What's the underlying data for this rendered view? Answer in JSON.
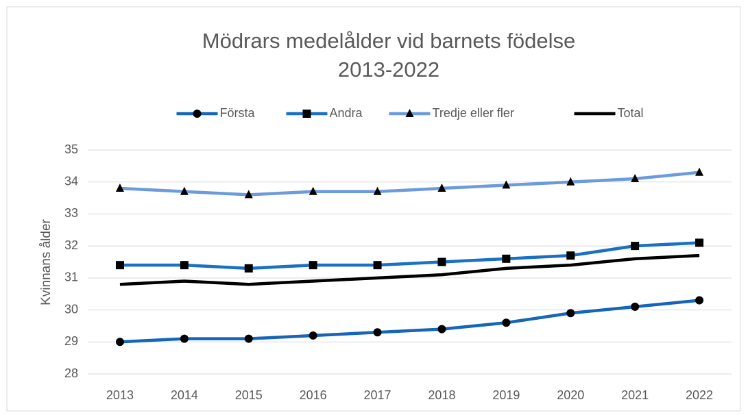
{
  "chart_data": {
    "type": "line",
    "title": "Mödrars medelålder vid barnets födelse",
    "subtitle": "2013-2022",
    "y_label": "Kvinnans ålder",
    "categories": [
      "2013",
      "2014",
      "2015",
      "2016",
      "2017",
      "2018",
      "2019",
      "2020",
      "2021",
      "2022"
    ],
    "series": [
      {
        "name": "Första",
        "color": "#1565b8",
        "marker": "circle",
        "values": [
          29.0,
          29.1,
          29.1,
          29.2,
          29.3,
          29.4,
          29.6,
          29.9,
          30.1,
          30.3
        ]
      },
      {
        "name": "Andra",
        "color": "#1a70c4",
        "marker": "square",
        "values": [
          31.4,
          31.4,
          31.3,
          31.4,
          31.4,
          31.5,
          31.6,
          31.7,
          32.0,
          32.1
        ]
      },
      {
        "name": "Tredje eller fler",
        "color": "#6b9bdc",
        "marker": "triangle",
        "values": [
          33.8,
          33.7,
          33.6,
          33.7,
          33.7,
          33.8,
          33.9,
          34.0,
          34.1,
          34.3
        ]
      },
      {
        "name": "Total",
        "color": "#000000",
        "marker": "none",
        "values": [
          30.8,
          30.9,
          30.8,
          30.9,
          31.0,
          31.1,
          31.3,
          31.4,
          31.6,
          31.7
        ]
      }
    ],
    "ylim": [
      28,
      35
    ],
    "yticks": [
      28,
      29,
      30,
      31,
      32,
      33,
      34,
      35
    ],
    "grid": true,
    "legend": "top"
  }
}
